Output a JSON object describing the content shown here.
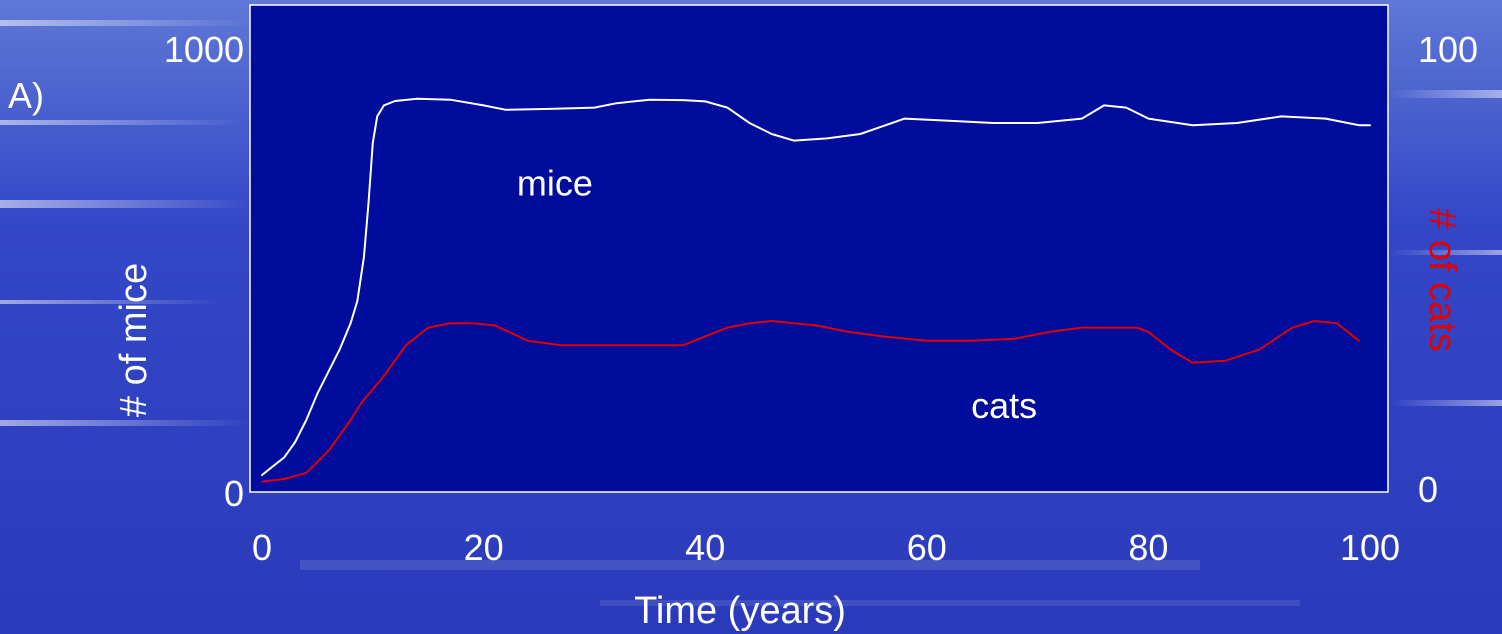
{
  "panel_label": "A)",
  "chart_data": {
    "type": "line",
    "title": "",
    "xlabel": "Time (years)",
    "ylabel_left": "# of mice",
    "ylabel_right": "# of cats",
    "xlim": [
      0,
      100
    ],
    "ylim_left": [
      0,
      1000
    ],
    "ylim_right": [
      0,
      100
    ],
    "x_ticks": [
      0,
      20,
      40,
      60,
      80,
      100
    ],
    "x_tick_labels": [
      "0",
      "20",
      "40",
      "60",
      "80",
      "100"
    ],
    "y_left_ticks": [
      0,
      1000
    ],
    "y_left_tick_labels": [
      "0",
      "1000"
    ],
    "y_right_ticks": [
      0,
      100
    ],
    "y_right_tick_labels": [
      "0",
      "100"
    ],
    "grid": false,
    "legend": "none",
    "colors": {
      "plot_background": "#000C9C",
      "plot_border": "#FFFFFF",
      "mice": "#FFFFFF",
      "cats": "#E00000",
      "right_axis_label": "#E00000"
    },
    "annotations": [
      {
        "text": "mice",
        "x": 23,
        "y": 660,
        "axis": "left"
      },
      {
        "text": "cats",
        "x": 64,
        "y": 155,
        "axis": "left"
      }
    ],
    "series": [
      {
        "name": "mice",
        "axis": "left",
        "x": [
          0,
          1,
          2,
          3,
          4,
          5,
          6,
          7,
          8,
          8.6,
          9.2,
          9.6,
          10,
          10.4,
          11,
          12,
          14,
          17,
          20,
          22,
          26,
          30,
          32,
          35,
          38,
          40,
          42,
          44,
          46,
          48,
          51,
          54,
          58,
          62,
          66,
          70,
          74,
          76,
          78,
          80,
          84,
          88,
          92,
          96,
          98,
          99,
          100
        ],
        "y": [
          25,
          45,
          65,
          100,
          150,
          210,
          260,
          310,
          370,
          420,
          520,
          640,
          780,
          840,
          865,
          875,
          880,
          878,
          865,
          855,
          857,
          860,
          870,
          878,
          877,
          874,
          860,
          825,
          800,
          785,
          790,
          800,
          835,
          830,
          825,
          825,
          835,
          865,
          860,
          835,
          820,
          825,
          840,
          835,
          825,
          820,
          820
        ]
      },
      {
        "name": "cats",
        "axis": "right",
        "x": [
          0,
          2,
          4,
          6,
          8,
          9,
          11,
          13,
          15,
          17,
          19,
          21,
          24,
          27,
          30,
          33,
          36,
          38,
          40,
          42,
          44,
          46,
          48,
          50,
          53,
          56,
          60,
          64,
          68,
          71,
          74,
          77,
          79,
          80,
          82,
          84,
          87,
          90,
          93,
          95,
          97,
          99
        ],
        "y": [
          1,
          1.6,
          3,
          8,
          15,
          19,
          25,
          32,
          36,
          37,
          37,
          36.5,
          33,
          32,
          32,
          32,
          32,
          32,
          34,
          36,
          37,
          37.5,
          37,
          36.5,
          35,
          34,
          33,
          33,
          33.5,
          35,
          36,
          36,
          36,
          35,
          31,
          28,
          28.5,
          31,
          36,
          37.5,
          37,
          33
        ]
      }
    ]
  }
}
